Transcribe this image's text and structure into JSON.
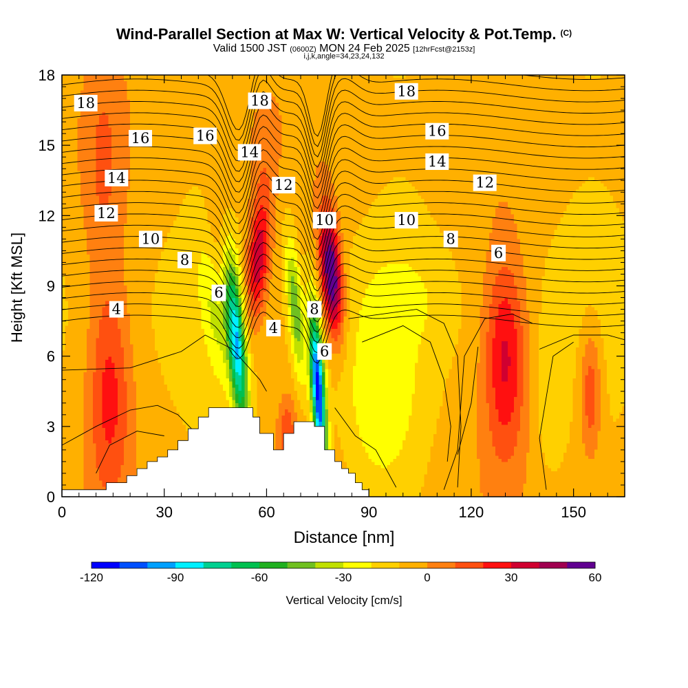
{
  "chart_data": {
    "type": "heatmap",
    "title": "Wind-Parallel Section at Max W: Vertical Velocity & Pot.Temp.",
    "copyright_mark": "(C)",
    "subtitle_main_a": "Valid 1500 JST",
    "subtitle_small_a": "(0600Z)",
    "subtitle_main_b": "MON 24 Feb 2025",
    "subtitle_small_b": "[12hrFcst@2153z]",
    "subtitle_indices": "i,j,k,angle=34,23,24,132",
    "xlabel": "Distance [nm]",
    "ylabel": "Height [Kft MSL]",
    "xlim": [
      0,
      165
    ],
    "ylim": [
      0,
      18
    ],
    "x_ticks": [
      0,
      30,
      60,
      90,
      120,
      150
    ],
    "y_ticks": [
      0,
      3,
      6,
      9,
      12,
      15,
      18
    ],
    "colorbar": {
      "label": "Vertical Velocity [cm/s]",
      "min": -120,
      "max": 60,
      "step": 10,
      "tick_values": [
        -120,
        -90,
        -60,
        -30,
        0,
        30,
        60
      ],
      "colors": [
        "#0000ff",
        "#0050ff",
        "#00a0ff",
        "#00f0ff",
        "#00d090",
        "#00c050",
        "#20b020",
        "#70c020",
        "#c0e000",
        "#ffff00",
        "#ffd000",
        "#ffb000",
        "#ff8010",
        "#ff5010",
        "#ff1010",
        "#d00030",
        "#a00050",
        "#600090"
      ]
    },
    "w_features": [
      {
        "kind": "background",
        "x": [
          0,
          165
        ],
        "z": [
          0,
          18
        ],
        "w": -8
      },
      {
        "kind": "updraft",
        "x": 14,
        "z": 4,
        "w": 30
      },
      {
        "kind": "updraft",
        "x": 58,
        "z": 10,
        "w": 30
      },
      {
        "kind": "updraft",
        "x": 79,
        "z": 9.5,
        "w": 60
      },
      {
        "kind": "downdraft",
        "x": 52,
        "z": 6,
        "w": -70
      },
      {
        "kind": "downdraft",
        "x": 75,
        "z": 4,
        "w": -110
      },
      {
        "kind": "updraft",
        "x": 130,
        "z": 6,
        "w": 30
      },
      {
        "kind": "updraft",
        "x": 155,
        "z": 4.5,
        "w": 20
      },
      {
        "kind": "weak_downdraft",
        "x": 92,
        "z": 3.5,
        "w": -20
      }
    ],
    "theta_contour_labels": [
      "18",
      "16",
      "14",
      "12",
      "10",
      "8",
      "6",
      "4"
    ],
    "theta_contour_label_positions": [
      {
        "text": "18",
        "x": 7,
        "z": 16.8
      },
      {
        "text": "18",
        "x": 58,
        "z": 16.9
      },
      {
        "text": "18",
        "x": 101,
        "z": 17.3
      },
      {
        "text": "16",
        "x": 23,
        "z": 15.3
      },
      {
        "text": "16",
        "x": 42,
        "z": 15.4
      },
      {
        "text": "16",
        "x": 110,
        "z": 15.6
      },
      {
        "text": "14",
        "x": 16,
        "z": 13.6
      },
      {
        "text": "14",
        "x": 55,
        "z": 14.7
      },
      {
        "text": "14",
        "x": 110,
        "z": 14.3
      },
      {
        "text": "12",
        "x": 13,
        "z": 12.1
      },
      {
        "text": "12",
        "x": 65,
        "z": 13.3
      },
      {
        "text": "12",
        "x": 124,
        "z": 13.4
      },
      {
        "text": "10",
        "x": 26,
        "z": 11.0
      },
      {
        "text": "10",
        "x": 77,
        "z": 11.8
      },
      {
        "text": "10",
        "x": 101,
        "z": 11.8
      },
      {
        "text": "8",
        "x": 36,
        "z": 10.1
      },
      {
        "text": "8",
        "x": 114,
        "z": 11.0
      },
      {
        "text": "8",
        "x": 74,
        "z": 8.0
      },
      {
        "text": "6",
        "x": 46,
        "z": 8.7
      },
      {
        "text": "6",
        "x": 77,
        "z": 6.2
      },
      {
        "text": "6",
        "x": 128,
        "z": 10.4
      },
      {
        "text": "4",
        "x": 16,
        "z": 8.0
      },
      {
        "text": "4",
        "x": 62,
        "z": 7.2
      }
    ],
    "terrain": {
      "x": [
        0,
        2,
        13,
        19,
        22,
        25,
        28,
        31,
        34,
        37,
        40,
        43,
        47,
        52,
        56,
        58,
        62,
        65,
        68,
        70,
        74,
        77,
        80,
        82,
        84,
        86,
        88,
        90
      ],
      "z": [
        0.3,
        0.3,
        0.6,
        0.9,
        1.2,
        1.5,
        1.7,
        2.0,
        2.4,
        2.9,
        3.4,
        3.8,
        3.8,
        3.8,
        3.4,
        2.7,
        2.0,
        2.7,
        3.2,
        3.2,
        3.0,
        2.0,
        1.5,
        1.2,
        1.0,
        0.6,
        0.3,
        0.0
      ]
    }
  }
}
